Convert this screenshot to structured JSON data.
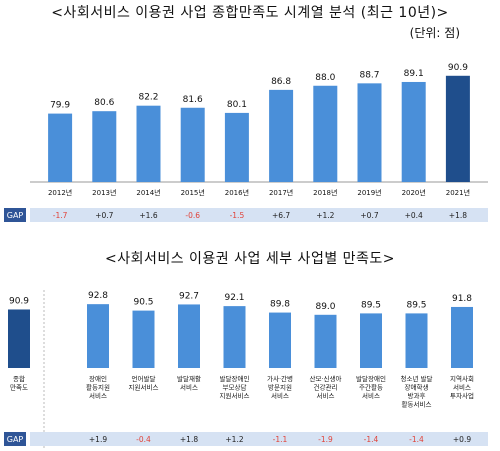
{
  "chart_data": [
    {
      "type": "bar",
      "title": "<사회서비스 이용권 사업 종합만족도 시계열 분석 (최근 10년)>",
      "unit": "(단위: 점)",
      "categories": [
        "2012년",
        "2013년",
        "2014년",
        "2015년",
        "2016년",
        "2017년",
        "2018년",
        "2019년",
        "2020년",
        "2021년"
      ],
      "values": [
        79.9,
        80.6,
        82.2,
        81.6,
        80.1,
        86.8,
        88.0,
        88.7,
        89.1,
        90.9
      ],
      "value_labels": [
        "79.9",
        "80.6",
        "82.2",
        "81.6",
        "80.1",
        "86.8",
        "88.0",
        "88.7",
        "89.1",
        "90.9"
      ],
      "gap_label": "GAP",
      "gap": [
        "-1.7",
        "+0.7",
        "+1.6",
        "-0.6",
        "-1.5",
        "+6.7",
        "+1.2",
        "+0.7",
        "+0.4",
        "+1.8"
      ],
      "colors": {
        "bar": "#4a8fd9",
        "highlight": "#1f4e8c",
        "negative": "#e0433a",
        "positive": "#222222",
        "gap_band": "#d6e2f3",
        "gap_tag": "#2f5597"
      }
    },
    {
      "type": "bar",
      "title": "<사회서비스 이용권 사업 세부 사업별 만족도>",
      "categories": [
        [
          "종합",
          "만족도"
        ],
        [
          "장애인",
          "활동지원",
          "서비스"
        ],
        [
          "언어발달",
          "지원서비스"
        ],
        [
          "발달재활",
          "서비스"
        ],
        [
          "발달장애인",
          "부모상담",
          "지원서비스"
        ],
        [
          "가사·간병",
          "방문지원",
          "서비스"
        ],
        [
          "산모·신생아",
          "건강관리",
          "서비스"
        ],
        [
          "발달장애인",
          "주간활동",
          "서비스"
        ],
        [
          "청소년 발달",
          "장애학생",
          "방과후",
          "활동서비스"
        ],
        [
          "지역사회",
          "서비스",
          "투자사업"
        ]
      ],
      "values": [
        90.9,
        92.8,
        90.5,
        92.7,
        92.1,
        89.8,
        89.0,
        89.5,
        89.5,
        91.8
      ],
      "value_labels": [
        "90.9",
        "92.8",
        "90.5",
        "92.7",
        "92.1",
        "89.8",
        "89.0",
        "89.5",
        "89.5",
        "91.8"
      ],
      "gap_label": "GAP",
      "gap": [
        "",
        "+1.9",
        "-0.4",
        "+1.8",
        "+1.2",
        "-1.1",
        "-1.9",
        "-1.4",
        "-1.4",
        "+0.9"
      ],
      "colors": {
        "bar": "#4a8fd9",
        "highlight": "#1f4e8c",
        "negative": "#e0433a",
        "positive": "#222222",
        "gap_band": "#d6e2f3",
        "gap_tag": "#2f5597"
      }
    }
  ]
}
